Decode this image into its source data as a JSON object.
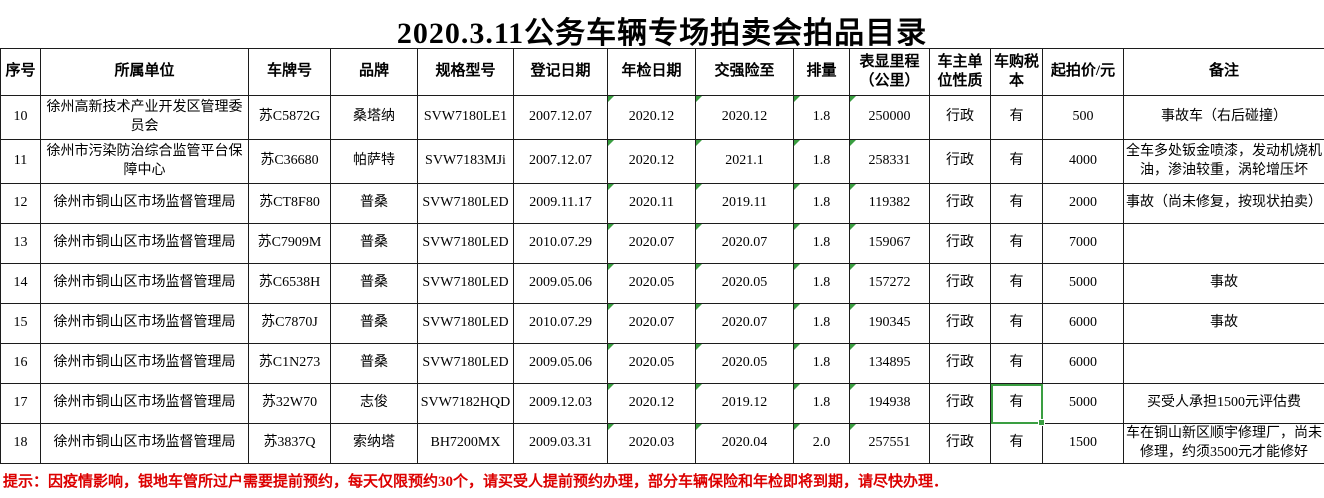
{
  "title": "2020.3.11公务车辆专场拍卖会拍品目录",
  "colors": {
    "accent_green": "#3a9e41",
    "footer_red": "#dc0000",
    "grid_line": "#1c1c1c"
  },
  "table": {
    "columns": [
      {
        "key": "seq",
        "label": "序号"
      },
      {
        "key": "unit",
        "label": "所属单位"
      },
      {
        "key": "plate",
        "label": "车牌号"
      },
      {
        "key": "brand",
        "label": "品牌"
      },
      {
        "key": "model",
        "label": "规格型号"
      },
      {
        "key": "reg-date",
        "label": "登记日期"
      },
      {
        "key": "insp-date",
        "label": "年检日期"
      },
      {
        "key": "ins-until",
        "label": "交强险至"
      },
      {
        "key": "disp",
        "label": "排量"
      },
      {
        "key": "mileage",
        "label": "表显里程（公里）"
      },
      {
        "key": "owner-type",
        "label": "车主单位性质"
      },
      {
        "key": "tax-book",
        "label": "车购税本"
      },
      {
        "key": "start-price",
        "label": "起拍价/元"
      },
      {
        "key": "remark",
        "label": "备注"
      }
    ],
    "rows": [
      [
        "10",
        "徐州高新技术产业开发区管理委员会",
        "苏C5872G",
        "桑塔纳",
        "SVW7180LE1",
        "2007.12.07",
        "2020.12",
        "2020.12",
        "1.8",
        "250000",
        "行政",
        "有",
        "500",
        "事故车（右后碰撞）"
      ],
      [
        "11",
        "徐州市污染防治综合监管平台保障中心",
        "苏C36680",
        "帕萨特",
        "SVW7183MJi",
        "2007.12.07",
        "2020.12",
        "2021.1",
        "1.8",
        "258331",
        "行政",
        "有",
        "4000",
        "全车多处钣金喷漆，发动机烧机油，渗油较重，涡轮增压坏"
      ],
      [
        "12",
        "徐州市铜山区市场监督管理局",
        "苏CT8F80",
        "普桑",
        "SVW7180LED",
        "2009.11.17",
        "2020.11",
        "2019.11",
        "1.8",
        "119382",
        "行政",
        "有",
        "2000",
        "事故（尚未修复，按现状拍卖）"
      ],
      [
        "13",
        "徐州市铜山区市场监督管理局",
        "苏C7909M",
        "普桑",
        "SVW7180LED",
        "2010.07.29",
        "2020.07",
        "2020.07",
        "1.8",
        "159067",
        "行政",
        "有",
        "7000",
        ""
      ],
      [
        "14",
        "徐州市铜山区市场监督管理局",
        "苏C6538H",
        "普桑",
        "SVW7180LED",
        "2009.05.06",
        "2020.05",
        "2020.05",
        "1.8",
        "157272",
        "行政",
        "有",
        "5000",
        "事故"
      ],
      [
        "15",
        "徐州市铜山区市场监督管理局",
        "苏C7870J",
        "普桑",
        "SVW7180LED",
        "2010.07.29",
        "2020.07",
        "2020.07",
        "1.8",
        "190345",
        "行政",
        "有",
        "6000",
        "事故"
      ],
      [
        "16",
        "徐州市铜山区市场监督管理局",
        "苏C1N273",
        "普桑",
        "SVW7180LED",
        "2009.05.06",
        "2020.05",
        "2020.05",
        "1.8",
        "134895",
        "行政",
        "有",
        "6000",
        ""
      ],
      [
        "17",
        "徐州市铜山区市场监督管理局",
        "苏32W70",
        "志俊",
        "SVW7182HQD",
        "2009.12.03",
        "2020.12",
        "2019.12",
        "1.8",
        "194938",
        "行政",
        "有",
        "5000",
        "买受人承担1500元评估费"
      ],
      [
        "18",
        "徐州市铜山区市场监督管理局",
        "苏3837Q",
        "索纳塔",
        "BH7200MX",
        "2009.03.31",
        "2020.03",
        "2020.04",
        "2.0",
        "257551",
        "行政",
        "有",
        "1500",
        "车在铜山新区顺宇修理厂，尚未修理，约须3500元才能修好"
      ]
    ],
    "flagged_columns": [
      6,
      7,
      8,
      9
    ],
    "selected_cell": {
      "row": 7,
      "col": 11,
      "value": "有"
    }
  },
  "footer": {
    "note": "提示：因疫情影响，银地车管所过户需要提前预约，每天仅限预约30个，请买受人提前预约办理，部分车辆保险和年检即将到期，请尽快办理．"
  }
}
